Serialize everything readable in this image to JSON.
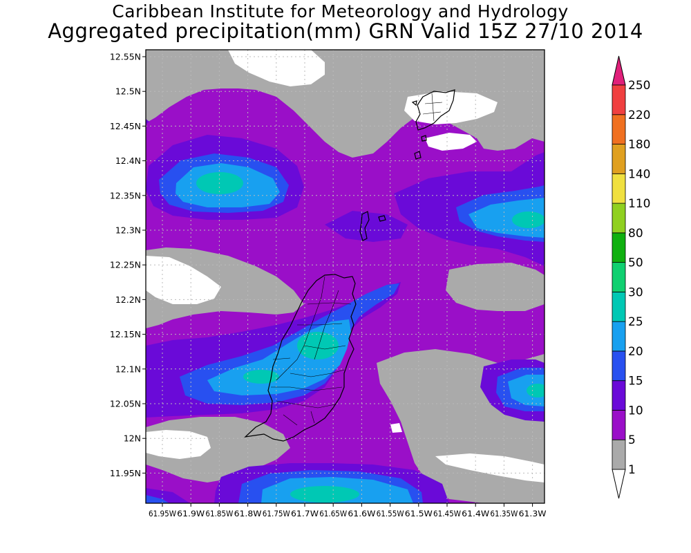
{
  "title": {
    "line1": "Caribbean Institute for Meteorology and Hydrology",
    "line2": "Aggregated precipitation(mm) GRN Valid 15Z 27/10 2014"
  },
  "map": {
    "lat_labels": [
      "12.55N",
      "12.5N",
      "12.45N",
      "12.4N",
      "12.35N",
      "12.3N",
      "12.25N",
      "12.2N",
      "12.15N",
      "12.1N",
      "12.05N",
      "12N",
      "11.95N"
    ],
    "lon_labels": [
      "61.95W",
      "61.9W",
      "61.85W",
      "61.8W",
      "61.75W",
      "61.7W",
      "61.65W",
      "61.6W",
      "61.55W",
      "61.5W",
      "61.45W",
      "61.4W",
      "61.35W",
      "61.3W"
    ]
  },
  "colorbar": {
    "levels": [
      "1",
      "5",
      "10",
      "15",
      "20",
      "25",
      "30",
      "50",
      "80",
      "110",
      "140",
      "180",
      "220",
      "250"
    ],
    "colors": [
      "#ffffff",
      "#aaaaaa",
      "#9a0fc8",
      "#6a0ad8",
      "#2850f0",
      "#18a0f0",
      "#00c8b4",
      "#10d070",
      "#10b010",
      "#90d020",
      "#f0e040",
      "#e0a020",
      "#f07020",
      "#f04040",
      "#e0207a"
    ]
  },
  "chart_data": {
    "type": "heatmap",
    "title": "Aggregated precipitation(mm) GRN Valid 15Z 27/10 2014",
    "xlabel": "",
    "ylabel": "",
    "xlim": [
      -61.97,
      -61.27
    ],
    "ylim": [
      11.905,
      12.565
    ],
    "units": "mm",
    "contour_levels": [
      1,
      5,
      10,
      15,
      20,
      25,
      30,
      50,
      80,
      110,
      140,
      180,
      220,
      250
    ],
    "maxima": [
      {
        "lon": -61.87,
        "lat": 12.37,
        "value_range": "25-30"
      },
      {
        "lon": -61.67,
        "lat": 12.13,
        "value_range": "25-30"
      },
      {
        "lon": -61.74,
        "lat": 12.09,
        "value_range": "25-30"
      },
      {
        "lon": -61.3,
        "lat": 12.32,
        "value_range": "25-30"
      },
      {
        "lon": -61.3,
        "lat": 12.07,
        "value_range": "25-30"
      },
      {
        "lon": -61.68,
        "lat": 11.93,
        "value_range": "25-30"
      }
    ],
    "dry_areas_below_1mm": [
      {
        "lon": -61.65,
        "lat": 12.55
      },
      {
        "lon": -61.48,
        "lat": 12.42
      },
      {
        "lon": -61.92,
        "lat": 12.22
      },
      {
        "lon": -61.9,
        "lat": 11.99
      },
      {
        "lon": -61.32,
        "lat": 11.96
      }
    ]
  }
}
